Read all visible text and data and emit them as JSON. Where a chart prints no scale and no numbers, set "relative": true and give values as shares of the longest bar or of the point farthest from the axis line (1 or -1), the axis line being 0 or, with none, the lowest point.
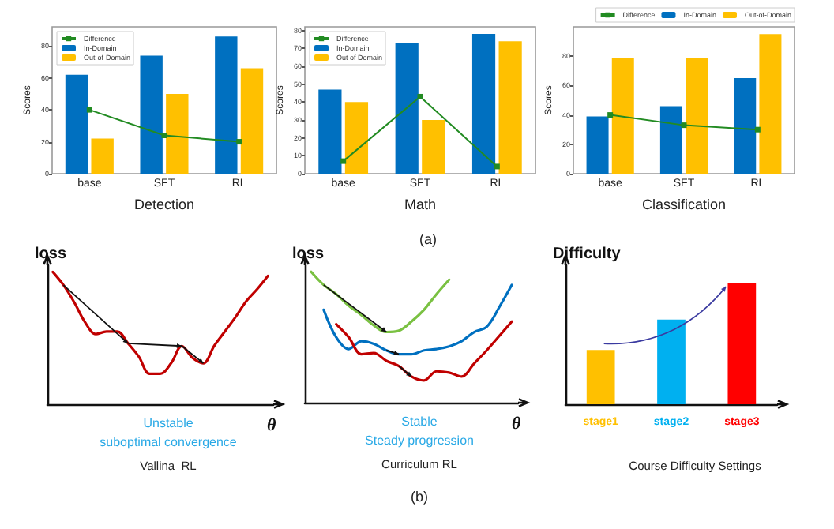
{
  "chart_data": [
    {
      "type": "bar",
      "xlabel": "Detection",
      "ylabel": "Scores",
      "categories": [
        "base",
        "SFT",
        "RL"
      ],
      "ylim": [
        0,
        92
      ],
      "yticks": [
        0,
        20,
        40,
        60,
        80
      ],
      "legend": "top left",
      "marker": "square",
      "series": [
        {
          "name": "Difference",
          "type": "line",
          "color": "#228b22",
          "values": [
            40,
            24,
            20
          ]
        },
        {
          "name": "In-Domain",
          "color": "#0070c0",
          "values": [
            62,
            74,
            86
          ]
        },
        {
          "name": "Out-of-Domain",
          "color": "#ffc000",
          "values": [
            22,
            50,
            66
          ]
        }
      ]
    },
    {
      "type": "bar",
      "xlabel": "Math",
      "ylabel": "Scores",
      "subtitle": "(a)",
      "categories": [
        "base",
        "SFT",
        "RL"
      ],
      "ylim": [
        0,
        82
      ],
      "yticks": [
        0,
        10,
        20,
        30,
        40,
        50,
        60,
        70,
        80
      ],
      "legend": "top left",
      "marker": "square",
      "series": [
        {
          "name": "Difference",
          "type": "line",
          "color": "#228b22",
          "values": [
            7,
            43,
            4
          ]
        },
        {
          "name": "In-Domain",
          "color": "#0070c0",
          "values": [
            47,
            73,
            78
          ]
        },
        {
          "name": "Out of Domain",
          "color": "#ffc000",
          "values": [
            40,
            30,
            74
          ]
        }
      ]
    },
    {
      "type": "bar",
      "xlabel": "Classification",
      "ylabel": "Scores",
      "categories": [
        "base",
        "SFT",
        "RL"
      ],
      "ylim": [
        0,
        100
      ],
      "yticks": [
        0,
        20,
        40,
        60,
        80
      ],
      "legend": "top right",
      "marker": "square",
      "series": [
        {
          "name": "Difference",
          "type": "line",
          "color": "#228b22",
          "values": [
            40,
            33,
            30
          ]
        },
        {
          "name": "In-Domain",
          "color": "#0070c0",
          "values": [
            39,
            46,
            65
          ]
        },
        {
          "name": "Out-of-Domain",
          "color": "#ffc000",
          "values": [
            79,
            79,
            95
          ]
        }
      ]
    },
    {
      "type": "line",
      "relative": true,
      "title": "Vallina  RL",
      "ylabel": "loss",
      "xlabel": "θ",
      "annotations": [
        "Unstable",
        "suboptimal convergence"
      ],
      "marker": "none",
      "categories": [
        null,
        null,
        null,
        null,
        null,
        null,
        null,
        null,
        null,
        null,
        null,
        null,
        null,
        null,
        null,
        null,
        null,
        null,
        null,
        null,
        null
      ],
      "series": [
        {
          "color": "#c00000",
          "values": [
            1,
            0.9,
            0.77,
            0.62,
            0.53,
            0.55,
            0.55,
            0.46,
            0.36,
            0.23,
            0.23,
            0.31,
            0.44,
            0.35,
            0.31,
            0.44,
            0.55,
            0.66,
            0.78,
            0.87,
            0.97
          ]
        }
      ]
    },
    {
      "type": "line",
      "relative": true,
      "title": "Curriculum RL",
      "subtitle": "(b)",
      "ylabel": "loss",
      "xlabel": "θ",
      "annotations": [
        "Stable",
        "Steady progression"
      ],
      "marker": "none",
      "categories": [
        null,
        null,
        null,
        null,
        null,
        null,
        null,
        null,
        null,
        null,
        null,
        null,
        null,
        null,
        null,
        null,
        null
      ],
      "series": [
        {
          "color": "#7ac142",
          "values": [
            1,
            0.9,
            0.83,
            0.74,
            0.67,
            0.59,
            0.54,
            0.55,
            0.62,
            0.71,
            0.83,
            0.94,
            null,
            null,
            null,
            null,
            null
          ]
        },
        {
          "color": "#0070c0",
          "values": [
            null,
            0.71,
            0.5,
            0.41,
            0.47,
            0.45,
            0.4,
            0.37,
            0.37,
            0.4,
            0.41,
            0.43,
            0.47,
            0.54,
            0.58,
            0.73,
            0.9
          ]
        },
        {
          "color": "#c00000",
          "values": [
            null,
            null,
            0.6,
            0.5,
            0.37,
            0.38,
            0.32,
            0.28,
            0.2,
            0.17,
            0.24,
            0.23,
            0.2,
            0.3,
            0.4,
            0.51,
            0.62
          ]
        }
      ]
    },
    {
      "type": "bar",
      "relative": true,
      "title": "Course Difficulty Settings",
      "ylabel": "Difficulty",
      "categories": [
        "stage1",
        "stage2",
        "stage3"
      ],
      "values": [
        0.45,
        0.7,
        1
      ],
      "colors": [
        "#ffc000",
        "#00b0f0",
        "#ff0000"
      ]
    }
  ]
}
